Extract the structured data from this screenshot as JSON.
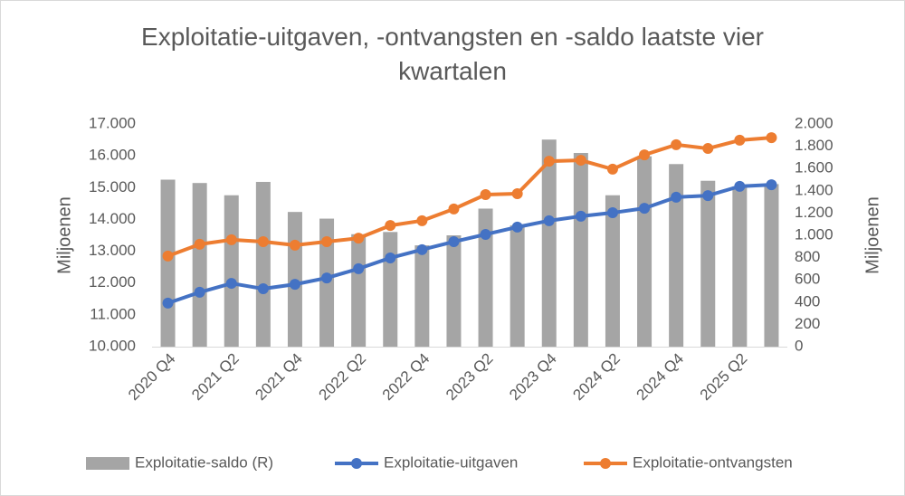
{
  "chart_data": {
    "type": "combo",
    "title": "Exploitatie-uitgaven, -ontvangsten en -saldo laatste vier kwartalen",
    "ylabel": "Miljoenen",
    "y2label": "Miljoenen",
    "categories": [
      "2020 Q4",
      null,
      "2021 Q2",
      null,
      "2021 Q4",
      null,
      "2022 Q2",
      null,
      "2022 Q4",
      null,
      "2023 Q2",
      null,
      "2023 Q4",
      null,
      "2024 Q2",
      null,
      "2024 Q4",
      null,
      "2025 Q2",
      null
    ],
    "ylim": [
      10000,
      17000
    ],
    "yticks": [
      {
        "value": 10000,
        "label": "10.000"
      },
      {
        "value": 11000,
        "label": "11.000"
      },
      {
        "value": 12000,
        "label": "12.000"
      },
      {
        "value": 13000,
        "label": "13.000"
      },
      {
        "value": 14000,
        "label": "14.000"
      },
      {
        "value": 15000,
        "label": "15.000"
      },
      {
        "value": 16000,
        "label": "16.000"
      },
      {
        "value": 17000,
        "label": "17.000"
      }
    ],
    "y2lim": [
      0,
      2000
    ],
    "y2ticks": [
      0,
      200,
      400,
      600,
      800,
      {
        "value": 1000,
        "label": "1.000"
      },
      {
        "value": 1200,
        "label": "1.200"
      },
      {
        "value": 1400,
        "label": "1.400"
      },
      {
        "value": 1600,
        "label": "1.600"
      },
      {
        "value": 1800,
        "label": "1.800"
      },
      {
        "value": 2000,
        "label": "2.000"
      }
    ],
    "grid": false,
    "legend": "bottom",
    "series": [
      {
        "name": "Exploitatie-saldo (R)",
        "type": "bar",
        "axis": "y2",
        "color": "#a5a5a5",
        "values": [
          1500,
          1470,
          1360,
          1480,
          1210,
          1150,
          1010,
          1030,
          910,
          1000,
          1240,
          1090,
          1860,
          1740,
          1360,
          1710,
          1640,
          1490,
          1440,
          1460
        ]
      },
      {
        "name": "Exploitatie-uitgaven",
        "type": "line",
        "color": "#4472c4",
        "values": [
          11370,
          11710,
          11990,
          11820,
          11960,
          12160,
          12450,
          12790,
          13050,
          13300,
          13530,
          13760,
          13960,
          14100,
          14210,
          14350,
          14700,
          14750,
          15040,
          15090
        ]
      },
      {
        "name": "Exploitatie-ontvangsten",
        "type": "line",
        "color": "#ed7d31",
        "values": [
          12850,
          13220,
          13360,
          13300,
          13190,
          13300,
          13410,
          13810,
          13960,
          14330,
          14780,
          14810,
          15830,
          15860,
          15580,
          16030,
          16350,
          16230,
          16490,
          16570
        ]
      }
    ]
  }
}
